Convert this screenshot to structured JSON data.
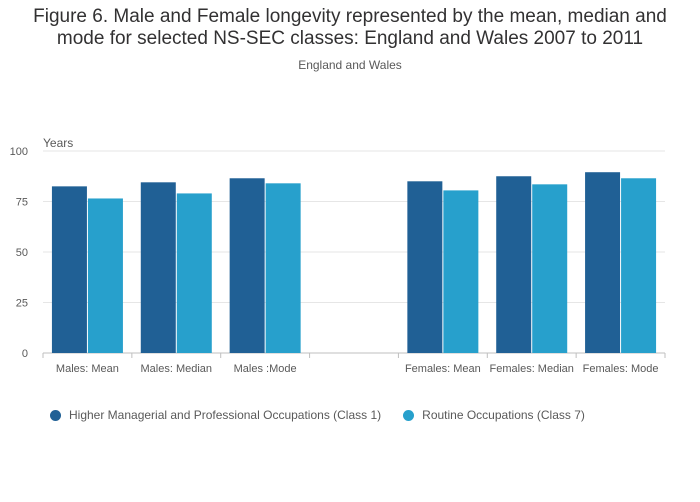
{
  "header": {
    "title": "Figure 6. Male and Female longevity represented by the mean, median and mode for selected NS-SEC classes: England and Wales 2007 to 2011",
    "subtitle": "England and Wales"
  },
  "colors": {
    "class1": "#206095",
    "class7": "#27a0cc",
    "gridline": "#e6e6e6",
    "axis": "#bfbfbf",
    "text": "#595959"
  },
  "chart_data": {
    "type": "bar",
    "ylabel": "Years",
    "ylim": [
      0,
      100
    ],
    "yticks": [
      0,
      25,
      50,
      75,
      100
    ],
    "categories": [
      "Males: Mean",
      "Males: Median",
      "Males :Mode",
      "",
      "Females: Mean",
      "Females: Median",
      "Females: Mode"
    ],
    "series": [
      {
        "name": "Higher Managerial and Professional Occupations (Class 1)",
        "values": [
          82.5,
          84.5,
          86.5,
          null,
          85,
          87.5,
          89.5
        ]
      },
      {
        "name": "Routine Occupations (Class 7)",
        "values": [
          76.5,
          79,
          84,
          null,
          80.5,
          83.5,
          86.5
        ]
      }
    ],
    "legend_position": "bottom-left",
    "grid": true
  }
}
